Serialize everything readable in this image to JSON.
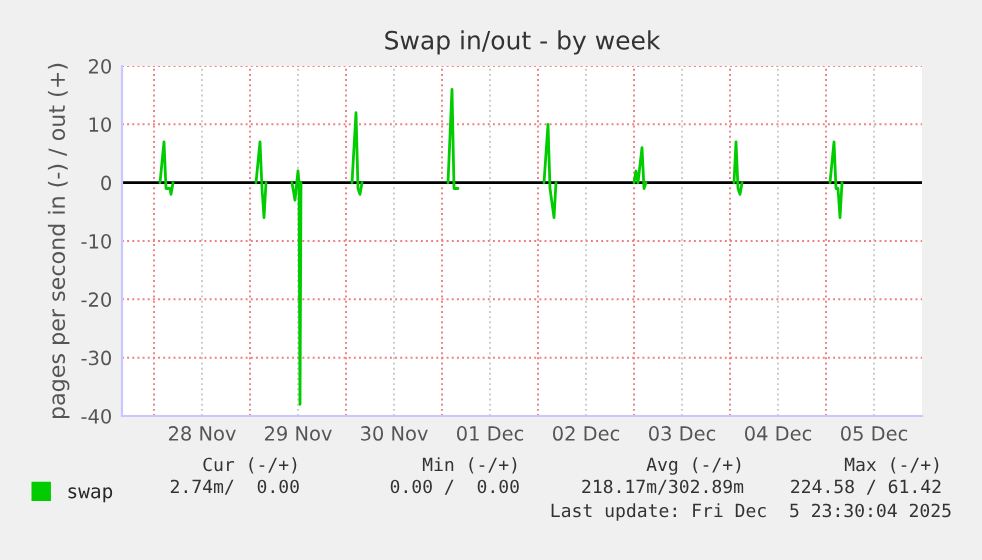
{
  "chart_data": {
    "type": "line",
    "title": "Swap in/out - by week",
    "ylabel": "pages per second in (-) / out (+)",
    "xlim": [
      "2025-11-27T16:00",
      "2025-12-06T00:00"
    ],
    "xticks": [
      {
        "value": "2025-11-28",
        "label": null
      },
      {
        "value": "2025-11-28T12:00",
        "label": "28 Nov"
      },
      {
        "value": "2025-11-29",
        "label": null
      },
      {
        "value": "2025-11-29T12:00",
        "label": "29 Nov"
      },
      {
        "value": "2025-11-30",
        "label": null
      },
      {
        "value": "2025-11-30T12:00",
        "label": "30 Nov"
      },
      {
        "value": "2025-12-01",
        "label": null
      },
      {
        "value": "2025-12-01T12:00",
        "label": "01 Dec"
      },
      {
        "value": "2025-12-02",
        "label": null
      },
      {
        "value": "2025-12-02T12:00",
        "label": "02 Dec"
      },
      {
        "value": "2025-12-03",
        "label": null
      },
      {
        "value": "2025-12-03T12:00",
        "label": "03 Dec"
      },
      {
        "value": "2025-12-04",
        "label": null
      },
      {
        "value": "2025-12-04T12:00",
        "label": "04 Dec"
      },
      {
        "value": "2025-12-05",
        "label": null
      },
      {
        "value": "2025-12-05T12:00",
        "label": "05 Dec"
      }
    ],
    "ylim": [
      -40,
      20
    ],
    "yticks": [
      -40,
      -30,
      -20,
      -10,
      0,
      10,
      20
    ],
    "grid": true,
    "legend": "bottom left",
    "ref_lines": [
      {
        "axis": "y",
        "value": 0,
        "color": "#000000"
      }
    ],
    "series": [
      {
        "name": "swap",
        "color": "#00cc00",
        "x": [
          "2025-11-28T01:30",
          "2025-11-28T02:30",
          "2025-11-28T03:00",
          "2025-11-28T04:00",
          "2025-11-28T04:15",
          "2025-11-28T04:45",
          "2025-11-28T08:00",
          "2025-11-29T01:30",
          "2025-11-29T02:30",
          "2025-11-29T03:00",
          "2025-11-29T03:30",
          "2025-11-29T04:00",
          "2025-11-29T08:00",
          "2025-11-29T10:30",
          "2025-11-29T11:15",
          "2025-11-29T12:00",
          "2025-11-29T12:15",
          "2025-11-29T12:30",
          "2025-11-29T12:45",
          "2025-11-29T20:00",
          "2025-11-30T01:30",
          "2025-11-30T02:30",
          "2025-11-30T03:00",
          "2025-11-30T03:30",
          "2025-11-30T04:00",
          "2025-11-30T05:00",
          "2025-12-01T01:30",
          "2025-12-01T02:30",
          "2025-12-01T03:00",
          "2025-12-01T04:00",
          "2025-12-01T08:00",
          "2025-12-02T01:30",
          "2025-12-02T02:30",
          "2025-12-02T03:00",
          "2025-12-02T04:00",
          "2025-12-02T04:30",
          "2025-12-02T12:00",
          "2025-12-03T00:00",
          "2025-12-03T00:30",
          "2025-12-03T01:00",
          "2025-12-03T02:00",
          "2025-12-03T02:30",
          "2025-12-03T03:00",
          "2025-12-03T05:00",
          "2025-12-04T01:00",
          "2025-12-04T01:30",
          "2025-12-04T02:00",
          "2025-12-04T02:30",
          "2025-12-04T03:00",
          "2025-12-04T12:00",
          "2025-12-05T01:00",
          "2025-12-05T02:00",
          "2025-12-05T02:30",
          "2025-12-05T03:00",
          "2025-12-05T03:30",
          "2025-12-05T04:00"
        ],
        "values": [
          0,
          7,
          -1,
          -1,
          -2,
          0,
          null,
          0,
          7,
          -1,
          -6,
          0,
          null,
          0,
          -3,
          2,
          0,
          -38,
          0,
          null,
          0,
          12,
          -1,
          -2,
          0,
          null,
          0,
          16,
          -1,
          -1,
          null,
          0,
          10,
          -1,
          -6,
          0,
          null,
          0,
          2,
          0,
          6,
          -1,
          0,
          null,
          0,
          7,
          -1,
          -2,
          0,
          null,
          0,
          7,
          -1,
          -1,
          -6,
          0
        ]
      }
    ],
    "annotations": [
      "Cur (-/+)",
      "Min (-/+)",
      "Avg (-/+)",
      "Max (-/+)",
      "2.74m/  0.00",
      "0.00 /  0.00",
      "218.17m/302.89m",
      "224.58 / 61.42",
      "Last update: Fri Dec  5 23:30:04 2025"
    ]
  }
}
